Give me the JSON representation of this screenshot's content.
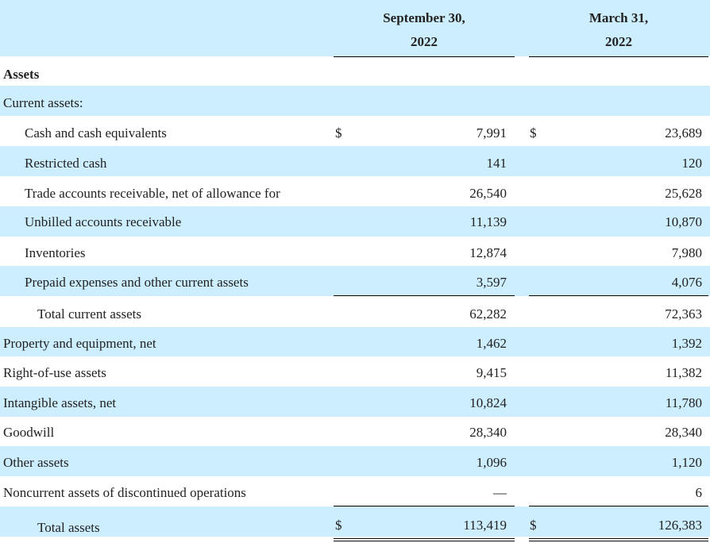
{
  "header": {
    "col1_line1": "September 30,",
    "col1_line2": "2022",
    "col2_line1": "March 31,",
    "col2_line2": "2022"
  },
  "sections": {
    "assets": "Assets",
    "current_assets": "Current assets:"
  },
  "currency_symbol": "$",
  "rows": [
    {
      "label": "Cash and cash equivalents",
      "sep": "7,991",
      "mar": "23,689"
    },
    {
      "label": "Restricted cash",
      "sep": "141",
      "mar": "120"
    },
    {
      "label": "Trade accounts receivable, net of allowance for",
      "sep": "26,540",
      "mar": "25,628"
    },
    {
      "label": "Unbilled accounts receivable",
      "sep": "11,139",
      "mar": "10,870"
    },
    {
      "label": "Inventories",
      "sep": "12,874",
      "mar": "7,980"
    },
    {
      "label": "Prepaid expenses and other current assets",
      "sep": "3,597",
      "mar": "4,076"
    },
    {
      "label": "Total current assets",
      "sep": "62,282",
      "mar": "72,363"
    },
    {
      "label": "Property and equipment, net",
      "sep": "1,462",
      "mar": "1,392"
    },
    {
      "label": "Right-of-use assets",
      "sep": "9,415",
      "mar": "11,382"
    },
    {
      "label": "Intangible assets, net",
      "sep": "10,824",
      "mar": "11,780"
    },
    {
      "label": "Goodwill",
      "sep": "28,340",
      "mar": "28,340"
    },
    {
      "label": "Other assets",
      "sep": "1,096",
      "mar": "1,120"
    },
    {
      "label": "Noncurrent assets of discontinued operations",
      "sep": "—",
      "mar": "6"
    },
    {
      "label": "Total assets",
      "sep": "113,419",
      "mar": "126,383"
    }
  ]
}
